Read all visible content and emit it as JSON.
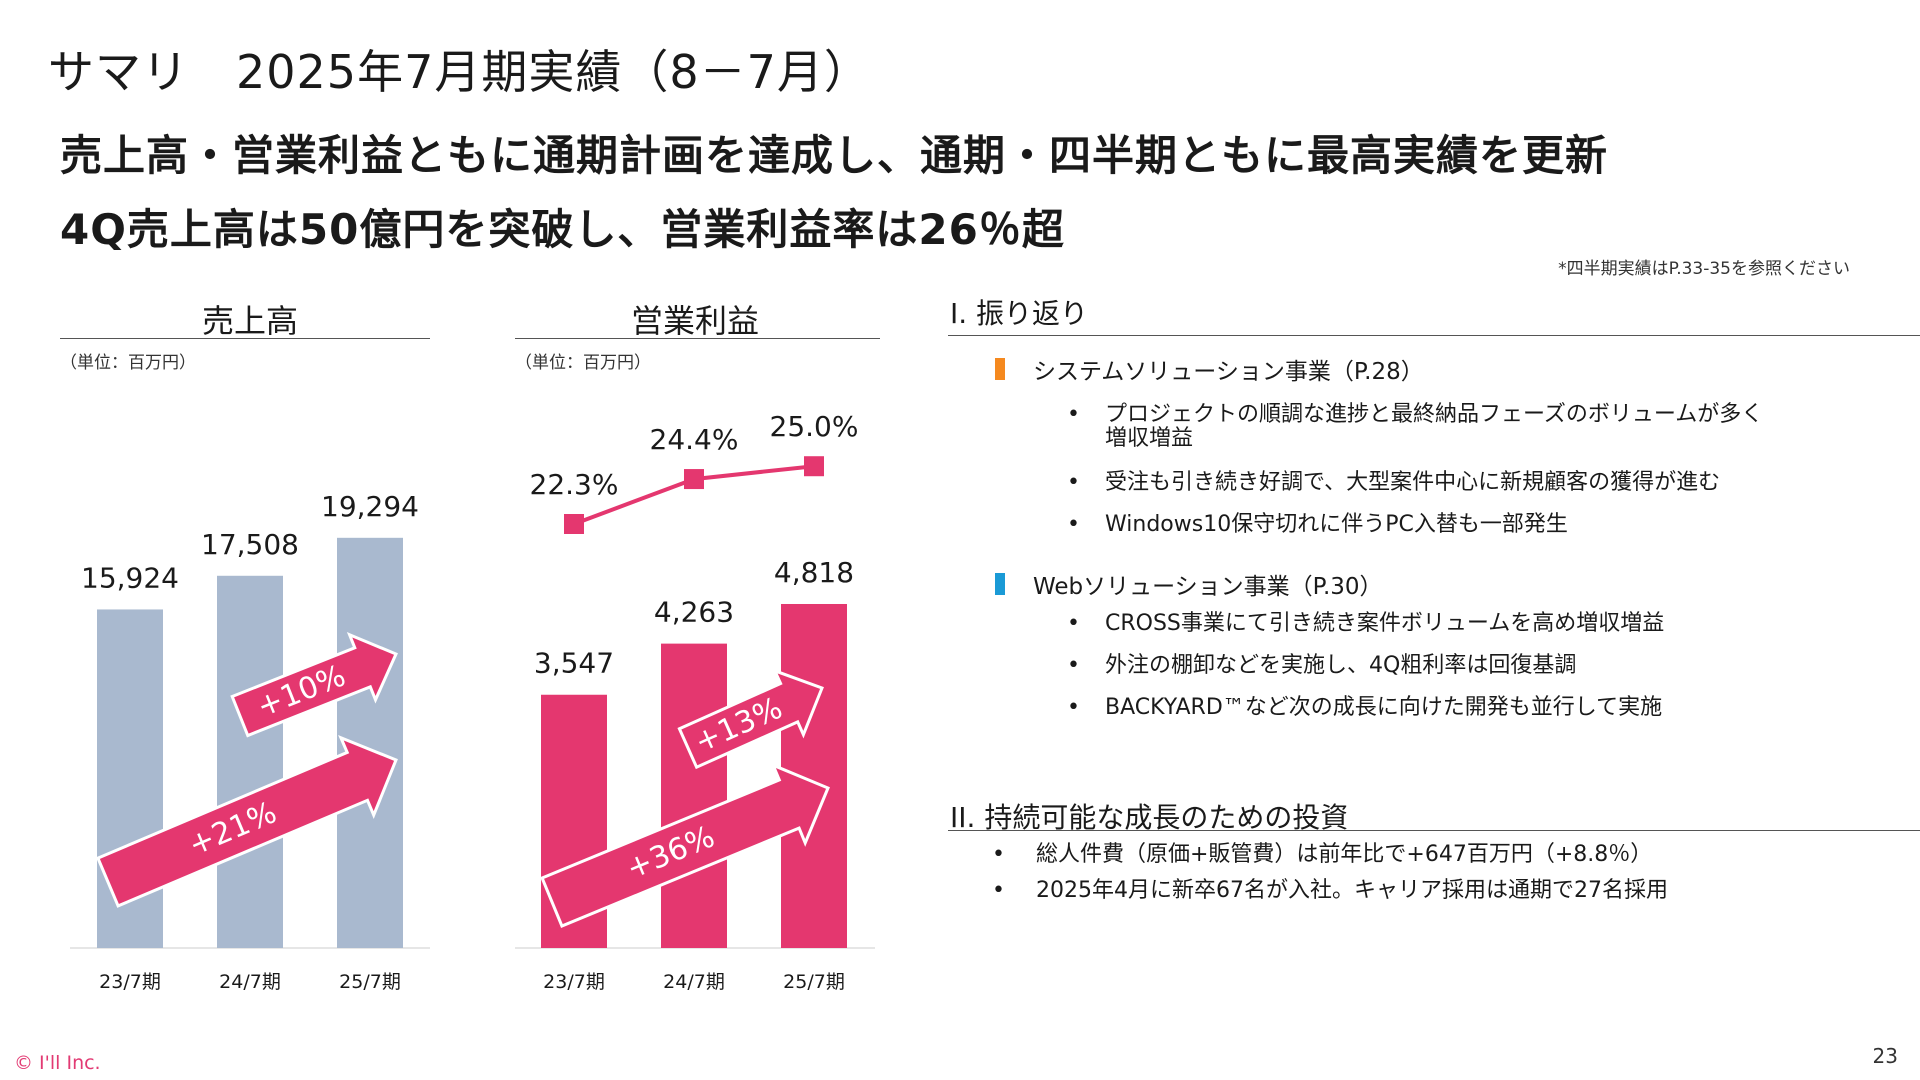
{
  "title": "サマリ　2025年7月期実績（8－7月）",
  "headlines": [
    "売上高・営業利益ともに通期計画を達成し、通期・四半期ともに最高実績を更新",
    "4Q売上高は50億円を突破し、営業利益率は26％超"
  ],
  "footnote": "*四半期実績はP.33-35を参照ください",
  "colors": {
    "bar_sales": "#a9b9cf",
    "accent": "#e4376f",
    "orange": "#f5891f",
    "blue": "#1a9ad6"
  },
  "chart_data": [
    {
      "type": "bar",
      "title": "売上高",
      "unit": "（単位：百万円）",
      "categories": [
        "23/7期",
        "24/7期",
        "25/7期"
      ],
      "values": [
        15924,
        17508,
        19294
      ],
      "value_labels": [
        "15,924",
        "17,508",
        "19,294"
      ],
      "annotations": [
        "+10%",
        "+21%"
      ]
    },
    {
      "type": "bar",
      "title": "営業利益",
      "unit": "（単位：百万円）",
      "categories": [
        "23/7期",
        "24/7期",
        "25/7期"
      ],
      "values": [
        3547,
        4263,
        4818
      ],
      "value_labels": [
        "3,547",
        "4,263",
        "4,818"
      ],
      "margin_line": {
        "values": [
          22.3,
          24.4,
          25.0
        ],
        "labels": [
          "22.3%",
          "24.4%",
          "25.0%"
        ]
      },
      "annotations": [
        "+13%",
        "+36%"
      ]
    }
  ],
  "sections": [
    {
      "title": "I.  振り返り",
      "subsections": [
        {
          "title": "システムソリューション事業（P.28）",
          "marker_color": "#f5891f",
          "bullets": [
            [
              "プロジェクトの順調な進捗と最終納品フェーズのボリュームが多く",
              "増収増益"
            ],
            [
              "受注も引き続き好調で、大型案件中心に新規顧客の獲得が進む"
            ],
            [
              "Windows10保守切れに伴うPC入替も一部発生"
            ]
          ]
        },
        {
          "title": "Webソリューション事業（P.30）",
          "marker_color": "#1a9ad6",
          "bullets": [
            [
              "CROSS事業にて引き続き案件ボリュームを高め増収増益"
            ],
            [
              "外注の棚卸などを実施し、4Q粗利率は回復基調"
            ],
            [
              "BACKYARD™など次の成長に向けた開発も並行して実施"
            ]
          ]
        }
      ]
    },
    {
      "title": "II.  持続可能な成長のための投資",
      "bullets": [
        "総人件費（原価+販管費）は前年比で+647百万円（+8.8％）",
        "2025年4月に新卒67名が入社。キャリア採用は通期で27名採用"
      ]
    }
  ],
  "bullet_symbol": "•",
  "copyright": "© I'll Inc.",
  "page_number": "23"
}
